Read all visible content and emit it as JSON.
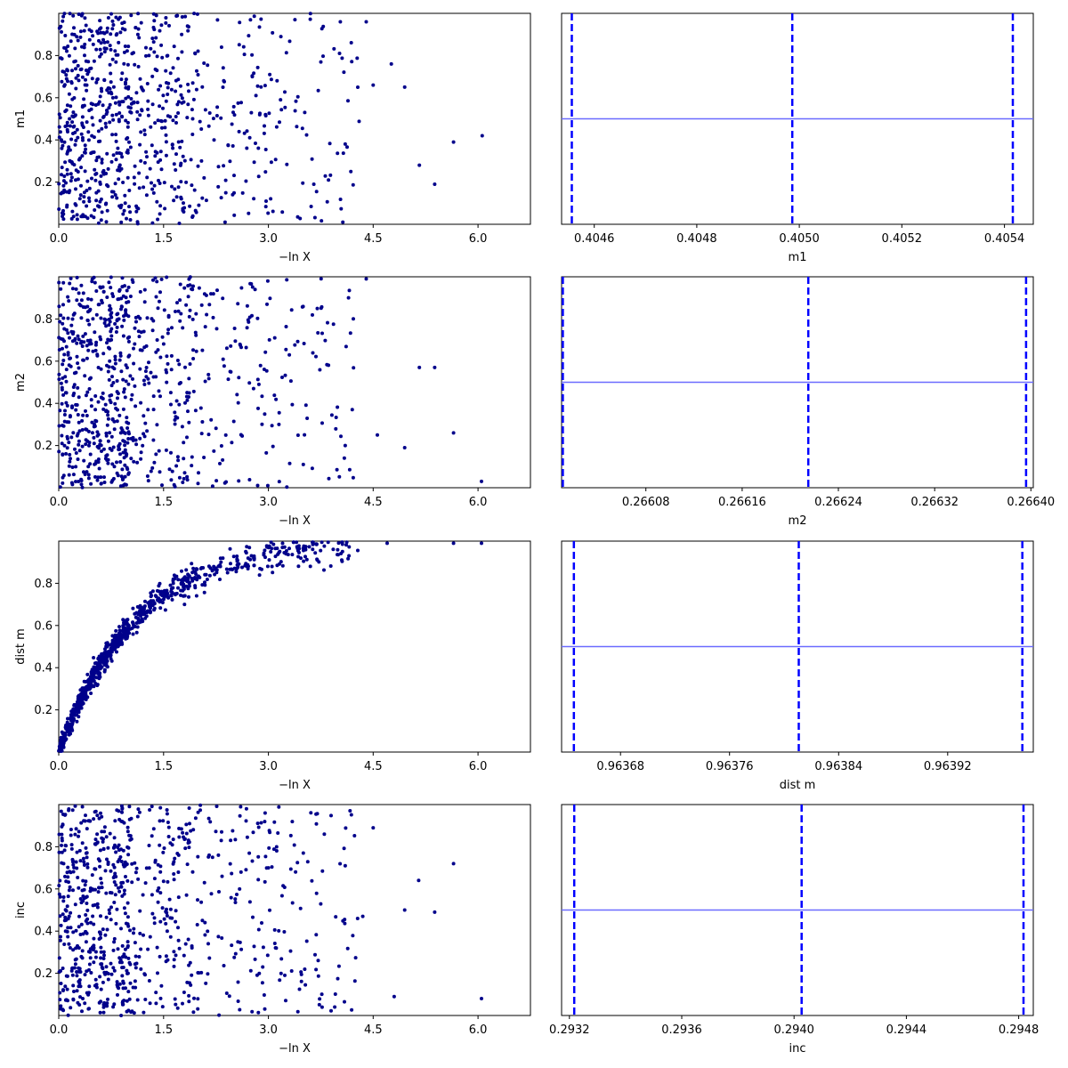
{
  "chart_data": [
    {
      "type": "scatter",
      "xlabel": "−ln X",
      "ylabel": "m1",
      "xlim": [
        0,
        6.75
      ],
      "ylim": [
        0,
        1.0
      ],
      "xticks": [
        "0.0",
        "1.5",
        "3.0",
        "4.5",
        "6.0"
      ],
      "yticks": [
        "0.2",
        "0.4",
        "0.6",
        "0.8"
      ],
      "pattern": "uniform",
      "point_count": 800,
      "points": [
        [
          6.06,
          0.42
        ],
        [
          5.65,
          0.39
        ],
        [
          5.38,
          0.19
        ],
        [
          5.16,
          0.28
        ],
        [
          4.95,
          0.65
        ],
        [
          4.76,
          0.76
        ],
        [
          4.5,
          0.66
        ],
        [
          4.4,
          0.96
        ],
        [
          4.18,
          0.25
        ],
        [
          4.1,
          0.38
        ],
        [
          4.03,
          0.96
        ],
        [
          3.86,
          0.21
        ],
        [
          3.65,
          0.19
        ],
        [
          3.52,
          0.53
        ],
        [
          3.38,
          0.97
        ]
      ],
      "grid": false
    },
    {
      "type": "line",
      "xlabel": "m1",
      "xlim": [
        0.40453,
        0.40545
      ],
      "xticks": [
        "0.4046",
        "0.4048",
        "0.4050",
        "0.4052",
        "0.4054"
      ],
      "vlines": [
        0.40455,
        0.40498,
        0.40541
      ],
      "hline": 0.5,
      "grid": false
    },
    {
      "type": "scatter",
      "xlabel": "−ln X",
      "ylabel": "m2",
      "xlim": [
        0,
        6.75
      ],
      "ylim": [
        0,
        1.0
      ],
      "xticks": [
        "0.0",
        "1.5",
        "3.0",
        "4.5",
        "6.0"
      ],
      "yticks": [
        "0.2",
        "0.4",
        "0.6",
        "0.8"
      ],
      "pattern": "uniform",
      "point_count": 800,
      "points": [
        [
          6.05,
          0.03
        ],
        [
          5.65,
          0.26
        ],
        [
          5.38,
          0.57
        ],
        [
          5.16,
          0.57
        ],
        [
          4.95,
          0.19
        ],
        [
          4.56,
          0.25
        ],
        [
          4.4,
          0.99
        ],
        [
          4.2,
          0.37
        ],
        [
          4.1,
          0.2
        ],
        [
          3.7,
          0.85
        ],
        [
          3.5,
          0.11
        ],
        [
          3.3,
          0.63
        ]
      ],
      "grid": false
    },
    {
      "type": "line",
      "xlabel": "m2",
      "xlim": [
        0.266009,
        0.266401
      ],
      "xticks": [
        "0.26608",
        "0.26616",
        "0.26624",
        "0.26632",
        "0.26640"
      ],
      "vlines": [
        0.26601,
        0.266214,
        0.266395
      ],
      "hline": 0.5,
      "grid": false
    },
    {
      "type": "scatter",
      "xlabel": "−ln X",
      "ylabel": "dist m",
      "xlim": [
        0,
        6.75
      ],
      "ylim": [
        0,
        1.0
      ],
      "xticks": [
        "0.0",
        "1.5",
        "3.0",
        "4.5",
        "6.0"
      ],
      "yticks": [
        "0.2",
        "0.4",
        "0.6",
        "0.8"
      ],
      "pattern": "saturating",
      "point_count": 800,
      "points": [
        [
          6.05,
          0.99
        ],
        [
          5.65,
          0.99
        ],
        [
          4.7,
          0.99
        ],
        [
          4.05,
          0.91
        ],
        [
          3.7,
          0.91
        ],
        [
          3.6,
          0.88
        ],
        [
          3.2,
          0.97
        ],
        [
          2.55,
          0.87
        ],
        [
          1.8,
          0.7
        ],
        [
          1.2,
          0.62
        ]
      ],
      "grid": false
    },
    {
      "type": "line",
      "xlabel": "dist m",
      "xlim": [
        0.963637,
        0.963983
      ],
      "xticks": [
        "0.96368",
        "0.96376",
        "0.96384",
        "0.96392"
      ],
      "vlines": [
        0.963646,
        0.963811,
        0.963975
      ],
      "hline": 0.5,
      "grid": false
    },
    {
      "type": "scatter",
      "xlabel": "−ln X",
      "ylabel": "inc",
      "xlim": [
        0,
        6.75
      ],
      "ylim": [
        0,
        1.0
      ],
      "xticks": [
        "0.0",
        "1.5",
        "3.0",
        "4.5",
        "6.0"
      ],
      "yticks": [
        "0.2",
        "0.4",
        "0.6",
        "0.8"
      ],
      "pattern": "uniform",
      "point_count": 800,
      "points": [
        [
          6.05,
          0.08
        ],
        [
          5.65,
          0.72
        ],
        [
          5.38,
          0.49
        ],
        [
          5.15,
          0.64
        ],
        [
          4.95,
          0.5
        ],
        [
          4.8,
          0.09
        ],
        [
          4.5,
          0.89
        ],
        [
          4.35,
          0.47
        ],
        [
          4.1,
          0.71
        ],
        [
          3.95,
          0.04
        ],
        [
          3.8,
          0.86
        ],
        [
          3.5,
          0.77
        ]
      ],
      "grid": false
    },
    {
      "type": "line",
      "xlabel": "inc",
      "xlim": [
        0.29318,
        0.29486
      ],
      "xticks": [
        "0.2932",
        "0.2936",
        "0.2940",
        "0.2944",
        "0.2948"
      ],
      "vlines": [
        0.293225,
        0.294035,
        0.294825
      ],
      "hline": 0.5,
      "grid": false
    }
  ],
  "colors": {
    "scatter_points": "#00008b",
    "dashed_lines": "#0000ff",
    "hline": "#6b6bff",
    "axes": "#000000"
  }
}
